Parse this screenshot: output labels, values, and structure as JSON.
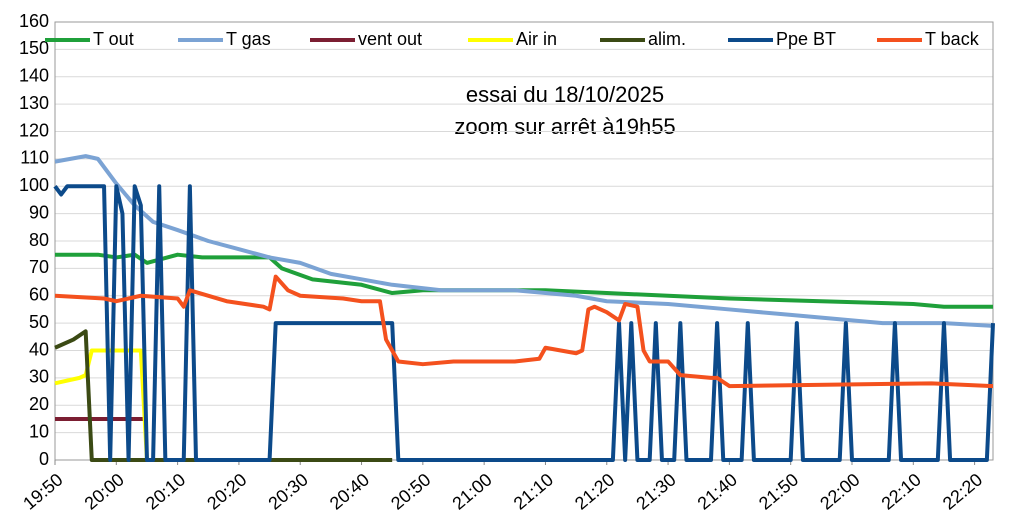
{
  "chart_data": {
    "type": "line",
    "annotations": [
      "essai du 18/10/2025",
      "zoom sur arrêt à19h55"
    ],
    "xlim": [
      "19:50",
      "22:23"
    ],
    "xticks": [
      "19:50",
      "20:00",
      "20:10",
      "20:20",
      "20:30",
      "20:40",
      "20:50",
      "21:00",
      "21:10",
      "21:20",
      "21:30",
      "21:40",
      "21:50",
      "22:00",
      "22:10",
      "22:20"
    ],
    "ylim": [
      0,
      160
    ],
    "yticks": [
      0,
      10,
      20,
      30,
      40,
      50,
      60,
      70,
      80,
      90,
      100,
      110,
      120,
      130,
      140,
      150,
      160
    ],
    "grid": true,
    "legend": "top",
    "series": [
      {
        "name": "T out",
        "color": "#1fa03a",
        "x": [
          "19:50",
          "19:57",
          "20:00",
          "20:03",
          "20:05",
          "20:10",
          "20:14",
          "20:25",
          "20:27",
          "20:32",
          "20:40",
          "20:45",
          "20:50",
          "21:10",
          "21:20",
          "21:30",
          "21:40",
          "21:55",
          "22:10",
          "22:15",
          "22:23"
        ],
        "values": [
          75,
          75,
          74,
          75,
          72,
          75,
          74,
          74,
          70,
          66,
          64,
          61,
          62,
          62,
          61,
          60,
          59,
          58,
          57,
          56,
          56
        ]
      },
      {
        "name": "T gas",
        "color": "#7ba3d4",
        "x": [
          "19:50",
          "19:55",
          "19:57",
          "20:00",
          "20:03",
          "20:06",
          "20:10",
          "20:15",
          "20:20",
          "20:25",
          "20:30",
          "20:35",
          "20:40",
          "20:45",
          "20:53",
          "21:05",
          "21:15",
          "21:20",
          "21:30",
          "21:40",
          "21:50",
          "22:00",
          "22:05",
          "22:15",
          "22:23"
        ],
        "values": [
          109,
          111,
          110,
          101,
          93,
          87,
          84,
          80,
          77,
          74,
          72,
          68,
          66,
          64,
          62,
          62,
          60,
          58,
          57,
          55,
          53,
          51,
          50,
          50,
          49
        ]
      },
      {
        "name": "vent out",
        "color": "#7b1e32",
        "x": [
          "19:50",
          "20:05"
        ],
        "values": [
          15,
          15
        ]
      },
      {
        "name": "Air in",
        "color": "#ffff00",
        "x": [
          "19:50",
          "19:54",
          "19:55",
          "19:56",
          "20:04",
          "20:05"
        ],
        "values": [
          28,
          30,
          31,
          40,
          40,
          0
        ]
      },
      {
        "name": "alim.",
        "color": "#3b4a14",
        "x": [
          "19:50",
          "19:53",
          "19:55",
          "19:56",
          "20:45"
        ],
        "values": [
          41,
          44,
          47,
          0,
          0
        ]
      },
      {
        "name": "Ppe BT",
        "color": "#0c4a8a",
        "x": [
          "19:50",
          "19:51",
          "19:52",
          "19:58",
          "19:59",
          "20:00",
          "20:01",
          "20:02",
          "20:03",
          "20:04",
          "20:05",
          "20:06",
          "20:07",
          "20:08",
          "20:11",
          "20:12",
          "20:13",
          "20:25",
          "20:26",
          "20:45",
          "20:46",
          "21:21",
          "21:22",
          "21:23",
          "21:24",
          "21:25",
          "21:27",
          "21:28",
          "21:29",
          "21:31",
          "21:32",
          "21:33",
          "21:37",
          "21:38",
          "21:39",
          "21:42",
          "21:43",
          "21:44",
          "21:50",
          "21:51",
          "21:52",
          "21:58",
          "21:59",
          "22:00",
          "22:06",
          "22:07",
          "22:08",
          "22:14",
          "22:15",
          "22:16",
          "22:22",
          "22:23"
        ],
        "values": [
          100,
          97,
          100,
          100,
          0,
          100,
          90,
          0,
          100,
          93,
          0,
          0,
          100,
          0,
          0,
          100,
          0,
          0,
          50,
          50,
          0,
          0,
          50,
          0,
          50,
          0,
          0,
          50,
          0,
          0,
          50,
          0,
          0,
          50,
          0,
          0,
          50,
          0,
          0,
          50,
          0,
          0,
          50,
          0,
          0,
          50,
          0,
          0,
          50,
          0,
          0,
          50
        ]
      },
      {
        "name": "T back",
        "color": "#f4511e",
        "x": [
          "19:50",
          "19:58",
          "20:00",
          "20:04",
          "20:10",
          "20:11",
          "20:12",
          "20:18",
          "20:24",
          "20:25",
          "20:26",
          "20:28",
          "20:30",
          "20:37",
          "20:40",
          "20:43",
          "20:44",
          "20:46",
          "20:50",
          "20:55",
          "21:05",
          "21:09",
          "21:10",
          "21:15",
          "21:16",
          "21:17",
          "21:18",
          "21:20",
          "21:22",
          "21:23",
          "21:25",
          "21:26",
          "21:27",
          "21:30",
          "21:32",
          "21:37",
          "21:38",
          "21:40",
          "22:13",
          "22:23"
        ],
        "values": [
          60,
          59,
          58,
          60,
          59,
          56,
          62,
          58,
          56,
          55,
          67,
          62,
          60,
          59,
          58,
          58,
          44,
          36,
          35,
          36,
          36,
          37,
          41,
          39,
          40,
          55,
          56,
          54,
          51,
          57,
          56,
          40,
          36,
          36,
          31,
          30,
          30,
          27,
          28,
          27
        ]
      }
    ]
  }
}
